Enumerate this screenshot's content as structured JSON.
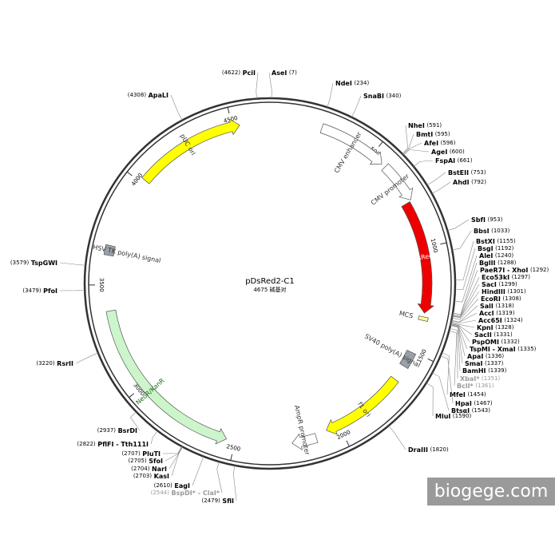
{
  "title": "pDsRed2-C1",
  "length": "4675 碱基对",
  "watermark": "biogege.com",
  "ticks": [
    "500",
    "1000",
    "1500",
    "2000",
    "2500",
    "3000",
    "3500",
    "4000",
    "4500"
  ],
  "features": [
    {
      "name": "pUC ori"
    },
    {
      "name": "CMV enhancer"
    },
    {
      "name": "CMV promoter"
    },
    {
      "name": "DsRed2"
    },
    {
      "name": "MCS"
    },
    {
      "name": "SV40 poly(A) signal"
    },
    {
      "name": "f1 ori"
    },
    {
      "name": "AmpR promoter"
    },
    {
      "name": "NeoR/KanR"
    },
    {
      "name": "HSV TK poly(A) signal"
    }
  ],
  "enzymes": [
    {
      "name": "PciI",
      "pos": "(4622)"
    },
    {
      "name": "AseI",
      "pos": "(7)"
    },
    {
      "name": "NdeI",
      "pos": "(234)"
    },
    {
      "name": "SnaBI",
      "pos": "(340)"
    },
    {
      "name": "NheI",
      "pos": "(591)"
    },
    {
      "name": "BmtI",
      "pos": "(595)"
    },
    {
      "name": "AfeI",
      "pos": "(596)"
    },
    {
      "name": "AgeI",
      "pos": "(600)"
    },
    {
      "name": "FspAI",
      "pos": "(661)"
    },
    {
      "name": "BstEII",
      "pos": "(753)"
    },
    {
      "name": "AhdI",
      "pos": "(792)"
    },
    {
      "name": "SbfI",
      "pos": "(953)"
    },
    {
      "name": "BbsI",
      "pos": "(1033)"
    },
    {
      "name": "BstXI",
      "pos": "(1155)"
    },
    {
      "name": "BsgI",
      "pos": "(1192)"
    },
    {
      "name": "AleI",
      "pos": "(1240)"
    },
    {
      "name": "BglII",
      "pos": "(1288)"
    },
    {
      "name": "PaeR7I - XhoI",
      "pos": "(1292)"
    },
    {
      "name": "Eco53kI",
      "pos": "(1297)"
    },
    {
      "name": "SacI",
      "pos": "(1299)"
    },
    {
      "name": "HindIII",
      "pos": "(1301)"
    },
    {
      "name": "EcoRI",
      "pos": "(1308)"
    },
    {
      "name": "SalI",
      "pos": "(1318)"
    },
    {
      "name": "AccI",
      "pos": "(1319)"
    },
    {
      "name": "Acc65I",
      "pos": "(1324)"
    },
    {
      "name": "KpnI",
      "pos": "(1328)"
    },
    {
      "name": "SacII",
      "pos": "(1331)"
    },
    {
      "name": "PspOMI",
      "pos": "(1332)"
    },
    {
      "name": "TspMI - XmaI",
      "pos": "(1335)"
    },
    {
      "name": "ApaI",
      "pos": "(1336)"
    },
    {
      "name": "SmaI",
      "pos": "(1337)"
    },
    {
      "name": "BamHI",
      "pos": "(1339)"
    },
    {
      "name": "XbaI*",
      "pos": "(1351)",
      "color": "#999999"
    },
    {
      "name": "BclI*",
      "pos": "(1361)",
      "color": "#999999"
    },
    {
      "name": "MfeI",
      "pos": "(1454)"
    },
    {
      "name": "HpaI",
      "pos": "(1467)"
    },
    {
      "name": "BtsαI",
      "pos": "(1543)"
    },
    {
      "name": "MluI",
      "pos": "(1590)"
    },
    {
      "name": "DraIII",
      "pos": "(1820)"
    },
    {
      "name": "SfiI",
      "pos": "(2479)"
    },
    {
      "name": "BspDI* - ClaI*",
      "pos": "(2544)",
      "color": "#999999"
    },
    {
      "name": "EagI",
      "pos": "(2610)"
    },
    {
      "name": "KasI",
      "pos": "(2703)"
    },
    {
      "name": "NarI",
      "pos": "(2704)"
    },
    {
      "name": "SfoI",
      "pos": "(2705)"
    },
    {
      "name": "PluTI",
      "pos": "(2707)"
    },
    {
      "name": "PflFI - Tth111I",
      "pos": "(2822)"
    },
    {
      "name": "BsrDI",
      "pos": "(2937)"
    },
    {
      "name": "RsrII",
      "pos": "(3220)"
    },
    {
      "name": "PfoI",
      "pos": "(3479)"
    },
    {
      "name": "TspGWI",
      "pos": "(3579)"
    },
    {
      "name": "ApaLI",
      "pos": "(4308)"
    }
  ]
}
